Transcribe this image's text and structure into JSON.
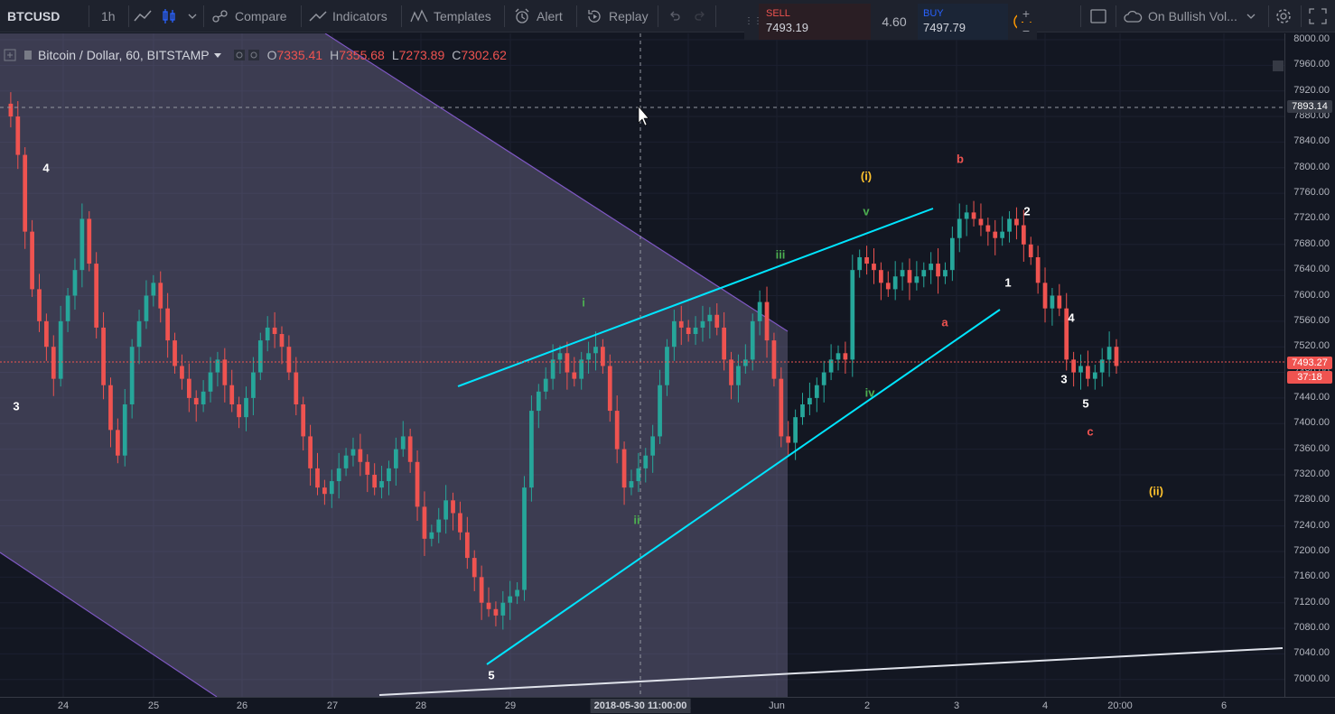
{
  "toolbar": {
    "symbol": "BTCUSD",
    "interval": "1h",
    "compare": "Compare",
    "indicators": "Indicators",
    "templates": "Templates",
    "alert": "Alert",
    "replay": "Replay",
    "alert_name": "On Bullish Vol..."
  },
  "trade": {
    "sell_label": "SELL",
    "sell_price": "7493.19",
    "spread": "4.60",
    "buy_label": "BUY",
    "buy_price": "7497.79",
    "plus": "+",
    "minus": "−"
  },
  "legend": {
    "title": "Bitcoin / Dollar, 60, BITSTAMP",
    "o_key": "O",
    "o_val": "7335.41",
    "h_key": "H",
    "h_val": "7355.68",
    "l_key": "L",
    "l_val": "7273.89",
    "c_key": "C",
    "c_val": "7302.62"
  },
  "price_axis": {
    "labels": [
      "8000.00",
      "7960.00",
      "7920.00",
      "7880.00",
      "7840.00",
      "7800.00",
      "7760.00",
      "7720.00",
      "7680.00",
      "7640.00",
      "7600.00",
      "7560.00",
      "7520.00",
      "7480.00",
      "7440.00",
      "7400.00",
      "7360.00",
      "7320.00",
      "7280.00",
      "7240.00",
      "7200.00",
      "7160.00",
      "7120.00",
      "7080.00",
      "7040.00",
      "7000.00"
    ],
    "crosshair_price": "7893.14",
    "last_price": "7493.27",
    "countdown": "37:18"
  },
  "time_axis": {
    "labels": [
      "24",
      "25",
      "26",
      "27",
      "28",
      "29",
      "1",
      "Jun",
      "2",
      "3",
      "4",
      "20:00",
      "6"
    ],
    "crosshair_time": "2018-05-30 11:00:00"
  },
  "wave_labels": [
    {
      "text": "4",
      "color": "#ffffff"
    },
    {
      "text": "3",
      "color": "#ffffff"
    },
    {
      "text": "5",
      "color": "#ffffff"
    },
    {
      "text": "i",
      "color": "#4caf50"
    },
    {
      "text": "ii",
      "color": "#4caf50"
    },
    {
      "text": "iii",
      "color": "#4caf50"
    },
    {
      "text": "iv",
      "color": "#4caf50"
    },
    {
      "text": "v",
      "color": "#4caf50"
    },
    {
      "text": "(i)",
      "color": "#fbc02d"
    },
    {
      "text": "(ii)",
      "color": "#fbc02d"
    },
    {
      "text": "a",
      "color": "#ef5350"
    },
    {
      "text": "b",
      "color": "#ef5350"
    },
    {
      "text": "c",
      "color": "#ef5350"
    },
    {
      "text": "1",
      "color": "#ffffff"
    },
    {
      "text": "2",
      "color": "#ffffff"
    },
    {
      "text": "3",
      "color": "#ffffff"
    },
    {
      "text": "4",
      "color": "#ffffff"
    },
    {
      "text": "5",
      "color": "#ffffff"
    }
  ],
  "colors": {
    "up": "#26a69a",
    "down": "#ef5350",
    "channel_line": "#00e5ff",
    "channel_fill": "#b2a8d8",
    "last_price": "#ef5350"
  },
  "chart_data": {
    "type": "candlestick",
    "symbol": "BTCUSD",
    "exchange": "BITSTAMP",
    "interval": "60",
    "ylim": [
      6980,
      8010
    ],
    "x_ticks": [
      "24",
      "25",
      "26",
      "27",
      "28",
      "29",
      "1",
      "Jun",
      "2",
      "3",
      "4",
      "20:00",
      "6"
    ],
    "last_price": 7493.27,
    "crosshair_price": 7893.14,
    "price_path": [
      7900,
      7880,
      7820,
      7700,
      7610,
      7560,
      7520,
      7470,
      7560,
      7600,
      7640,
      7720,
      7650,
      7550,
      7460,
      7390,
      7350,
      7430,
      7520,
      7560,
      7600,
      7620,
      7580,
      7530,
      7490,
      7470,
      7440,
      7430,
      7450,
      7480,
      7500,
      7460,
      7430,
      7410,
      7440,
      7480,
      7530,
      7550,
      7540,
      7520,
      7480,
      7430,
      7380,
      7330,
      7300,
      7290,
      7310,
      7330,
      7350,
      7360,
      7340,
      7320,
      7300,
      7310,
      7330,
      7360,
      7380,
      7340,
      7270,
      7220,
      7230,
      7250,
      7280,
      7260,
      7230,
      7190,
      7160,
      7120,
      7110,
      7100,
      7120,
      7130,
      7140,
      7300,
      7420,
      7450,
      7470,
      7500,
      7510,
      7480,
      7470,
      7500,
      7510,
      7520,
      7490,
      7420,
      7360,
      7300,
      7310,
      7330,
      7350,
      7380,
      7460,
      7520,
      7560,
      7550,
      7540,
      7550,
      7560,
      7570,
      7550,
      7500,
      7460,
      7490,
      7500,
      7560,
      7590,
      7530,
      7470,
      7380,
      7370,
      7410,
      7430,
      7440,
      7460,
      7480,
      7500,
      7510,
      7500,
      7640,
      7660,
      7650,
      7640,
      7620,
      7610,
      7630,
      7640,
      7620,
      7630,
      7640,
      7650,
      7630,
      7640,
      7690,
      7720,
      7730,
      7720,
      7710,
      7700,
      7690,
      7700,
      7720,
      7710,
      7680,
      7660,
      7620,
      7580,
      7600,
      7580,
      7500,
      7480,
      7490,
      7470,
      7480,
      7500,
      7520,
      7490
    ],
    "channel_lines": [
      {
        "from": {
          "date": "May 28 20:00",
          "price": 7463
        },
        "to": {
          "date": "Jun 2 18:00",
          "price": 7735
        }
      },
      {
        "from": {
          "date": "May 28 22:00",
          "price": 7022
        },
        "to": {
          "date": "Jun 3 12:00",
          "price": 7580
        }
      }
    ]
  }
}
